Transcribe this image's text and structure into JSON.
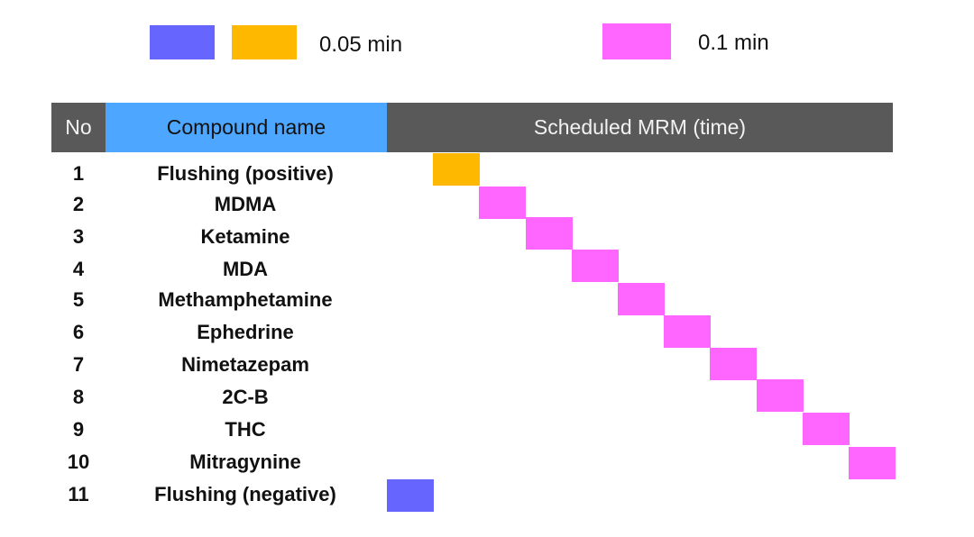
{
  "colors": {
    "blue": "#6666ff",
    "orange": "#ffb800",
    "magenta": "#ff66ff",
    "header_dark": "#595959",
    "header_blue": "#4da6ff"
  },
  "legend": {
    "label_005": "0.05 min",
    "label_01": "0.1 min"
  },
  "header": {
    "no": "No",
    "compound": "Compound name",
    "mrm": "Scheduled MRM (time)"
  },
  "rows": [
    {
      "no": "1",
      "name": "Flushing (positive)",
      "color": "orange",
      "slot": 1
    },
    {
      "no": "2",
      "name": "MDMA",
      "color": "magenta",
      "slot": 2
    },
    {
      "no": "3",
      "name": "Ketamine",
      "color": "magenta",
      "slot": 3
    },
    {
      "no": "4",
      "name": "MDA",
      "color": "magenta",
      "slot": 4
    },
    {
      "no": "5",
      "name": "Methamphetamine",
      "color": "magenta",
      "slot": 5
    },
    {
      "no": "6",
      "name": "Ephedrine",
      "color": "magenta",
      "slot": 6
    },
    {
      "no": "7",
      "name": "Nimetazepam",
      "color": "magenta",
      "slot": 7
    },
    {
      "no": "8",
      "name": "2C-B",
      "color": "magenta",
      "slot": 8
    },
    {
      "no": "9",
      "name": "THC",
      "color": "magenta",
      "slot": 9
    },
    {
      "no": "10",
      "name": "Mitragynine",
      "color": "magenta",
      "slot": 10
    },
    {
      "no": "11",
      "name": "Flushing (negative)",
      "color": "blue",
      "slot": 0
    }
  ]
}
